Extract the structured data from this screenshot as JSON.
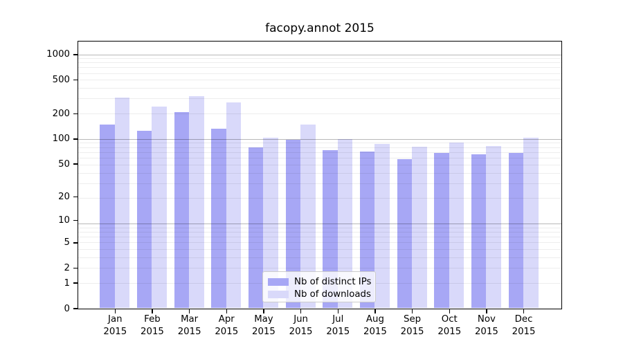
{
  "title": "facopy.annot 2015",
  "legend": {
    "items": [
      {
        "label": "Nb of distinct IPs",
        "color": "#a7a7f5"
      },
      {
        "label": "Nb of downloads",
        "color": "#d9d9fa"
      }
    ]
  },
  "chart_data": {
    "type": "bar",
    "title": "facopy.annot 2015",
    "categories": [
      "Jan",
      "Feb",
      "Mar",
      "Apr",
      "May",
      "Jun",
      "Jul",
      "Aug",
      "Sep",
      "Oct",
      "Nov",
      "Dec"
    ],
    "year_label": "2015",
    "series": [
      {
        "name": "Nb of distinct IPs",
        "color": "#a7a7f5",
        "values": [
          148,
          125,
          206,
          132,
          78,
          97,
          73,
          70,
          57,
          68,
          65,
          67
        ]
      },
      {
        "name": "Nb of downloads",
        "color": "#d9d9fa",
        "values": [
          310,
          242,
          321,
          269,
          102,
          147,
          98,
          87,
          80,
          90,
          81,
          102
        ]
      }
    ],
    "yscale": "log1p",
    "yticks": [
      0,
      1,
      2,
      5,
      10,
      20,
      50,
      100,
      200,
      500,
      1000
    ],
    "ylim": [
      0,
      1430
    ],
    "grid": "both",
    "legend_position": "lower-center"
  }
}
